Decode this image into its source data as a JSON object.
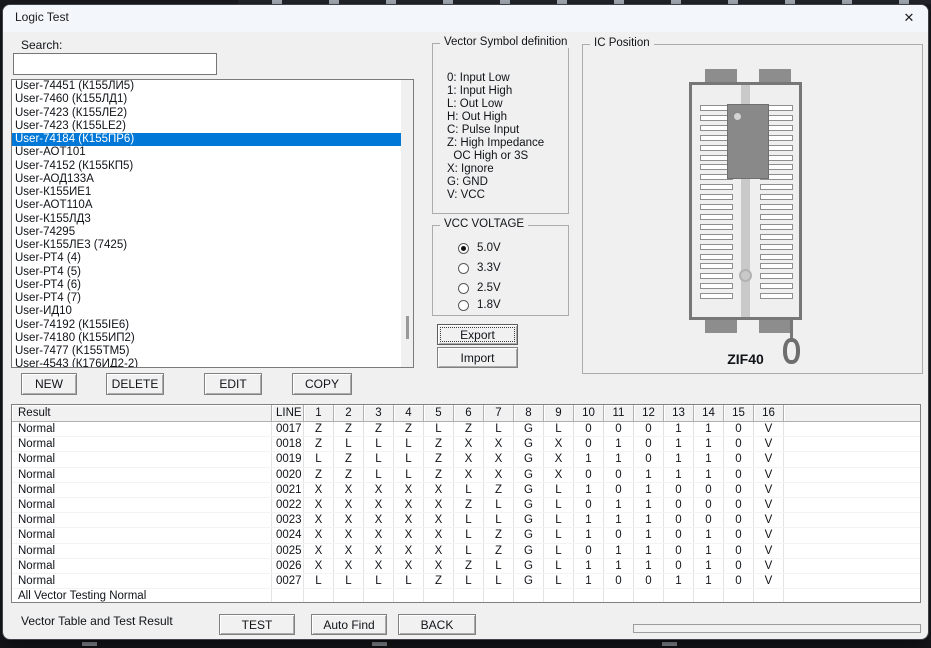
{
  "window": {
    "title": "Logic Test",
    "close_glyph": "✕"
  },
  "search": {
    "label": "Search:",
    "value": ""
  },
  "device_list": {
    "selected_index": 4,
    "items": [
      "User-74451 (К155ЛИ5)",
      "User-7460 (К155ЛД1)",
      "User-7423 (К155ЛЕ2)",
      "User-7423 (К155LE2)",
      "User-74184 (К155ПР6)",
      "User-АОТ101",
      "User-74152 (К155КП5)",
      "User-АОД133А",
      "User-К155ИЕ1",
      "User-АОТ110А",
      "User-К155ЛД3",
      "User-74295",
      "User-К155ЛЕ3 (7425)",
      "User-РТ4 (4)",
      "User-РТ4 (5)",
      "User-РТ4 (6)",
      "User-РТ4 (7)",
      "User-ИД10",
      "User-74192 (К155IE6)",
      "User-74180 (К155ИП2)",
      "User-7477 (K155TM5)",
      "User-4543 (К176ИД2-2)"
    ]
  },
  "list_buttons": {
    "new": "NEW",
    "delete": "DELETE",
    "edit": "EDIT",
    "copy": "COPY"
  },
  "vector_symbols": {
    "title": "Vector Symbol definition",
    "lines": [
      "0: Input Low",
      "1: Input High",
      "L: Out Low",
      "H: Out High",
      "C: Pulse Input",
      "Z: High Impedance",
      "  OC High or 3S",
      "X: Ignore",
      "G: GND",
      "V: VCC"
    ]
  },
  "vcc": {
    "title": "VCC VOLTAGE",
    "options": [
      {
        "label": "5.0V",
        "selected": true
      },
      {
        "label": "3.3V",
        "selected": false
      },
      {
        "label": "2.5V",
        "selected": false
      },
      {
        "label": "1.8V",
        "selected": false
      }
    ]
  },
  "actions": {
    "export": "Export",
    "import": "Import",
    "test": "TEST",
    "auto_find": "Auto Find",
    "back": "BACK"
  },
  "ic_position": {
    "title": "IC Position",
    "socket_label": "ZIF40"
  },
  "table": {
    "headers": [
      "Result",
      "LINE",
      "1",
      "2",
      "3",
      "4",
      "5",
      "6",
      "7",
      "8",
      "9",
      "10",
      "11",
      "12",
      "13",
      "14",
      "15",
      "16"
    ],
    "rows": [
      {
        "result": "Normal",
        "line": "0017",
        "values": [
          "Z",
          "Z",
          "Z",
          "Z",
          "L",
          "Z",
          "L",
          "G",
          "L",
          "0",
          "0",
          "0",
          "1",
          "1",
          "0",
          "V"
        ]
      },
      {
        "result": "Normal",
        "line": "0018",
        "values": [
          "Z",
          "L",
          "L",
          "L",
          "Z",
          "X",
          "X",
          "G",
          "X",
          "0",
          "1",
          "0",
          "1",
          "1",
          "0",
          "V"
        ]
      },
      {
        "result": "Normal",
        "line": "0019",
        "values": [
          "L",
          "Z",
          "L",
          "L",
          "Z",
          "X",
          "X",
          "G",
          "X",
          "1",
          "1",
          "0",
          "1",
          "1",
          "0",
          "V"
        ]
      },
      {
        "result": "Normal",
        "line": "0020",
        "values": [
          "Z",
          "Z",
          "L",
          "L",
          "Z",
          "X",
          "X",
          "G",
          "X",
          "0",
          "0",
          "1",
          "1",
          "1",
          "0",
          "V"
        ]
      },
      {
        "result": "Normal",
        "line": "0021",
        "values": [
          "X",
          "X",
          "X",
          "X",
          "X",
          "L",
          "Z",
          "G",
          "L",
          "1",
          "0",
          "1",
          "0",
          "0",
          "0",
          "V"
        ]
      },
      {
        "result": "Normal",
        "line": "0022",
        "values": [
          "X",
          "X",
          "X",
          "X",
          "X",
          "Z",
          "L",
          "G",
          "L",
          "0",
          "1",
          "1",
          "0",
          "0",
          "0",
          "V"
        ]
      },
      {
        "result": "Normal",
        "line": "0023",
        "values": [
          "X",
          "X",
          "X",
          "X",
          "X",
          "L",
          "L",
          "G",
          "L",
          "1",
          "1",
          "1",
          "0",
          "0",
          "0",
          "V"
        ]
      },
      {
        "result": "Normal",
        "line": "0024",
        "values": [
          "X",
          "X",
          "X",
          "X",
          "X",
          "L",
          "Z",
          "G",
          "L",
          "1",
          "0",
          "1",
          "0",
          "1",
          "0",
          "V"
        ]
      },
      {
        "result": "Normal",
        "line": "0025",
        "values": [
          "X",
          "X",
          "X",
          "X",
          "X",
          "L",
          "Z",
          "G",
          "L",
          "0",
          "1",
          "1",
          "0",
          "1",
          "0",
          "V"
        ]
      },
      {
        "result": "Normal",
        "line": "0026",
        "values": [
          "X",
          "X",
          "X",
          "X",
          "X",
          "Z",
          "L",
          "G",
          "L",
          "1",
          "1",
          "1",
          "0",
          "1",
          "0",
          "V"
        ]
      },
      {
        "result": "Normal",
        "line": "0027",
        "values": [
          "L",
          "L",
          "L",
          "L",
          "Z",
          "L",
          "L",
          "G",
          "L",
          "1",
          "0",
          "0",
          "1",
          "1",
          "0",
          "V"
        ]
      }
    ],
    "footer": "All Vector Testing Normal"
  },
  "footer": {
    "status": "Vector Table and Test Result"
  },
  "colors": {
    "selection": "#0078d7",
    "dialog_bg": "#f0f0f0",
    "socket_gray": "#777777"
  }
}
